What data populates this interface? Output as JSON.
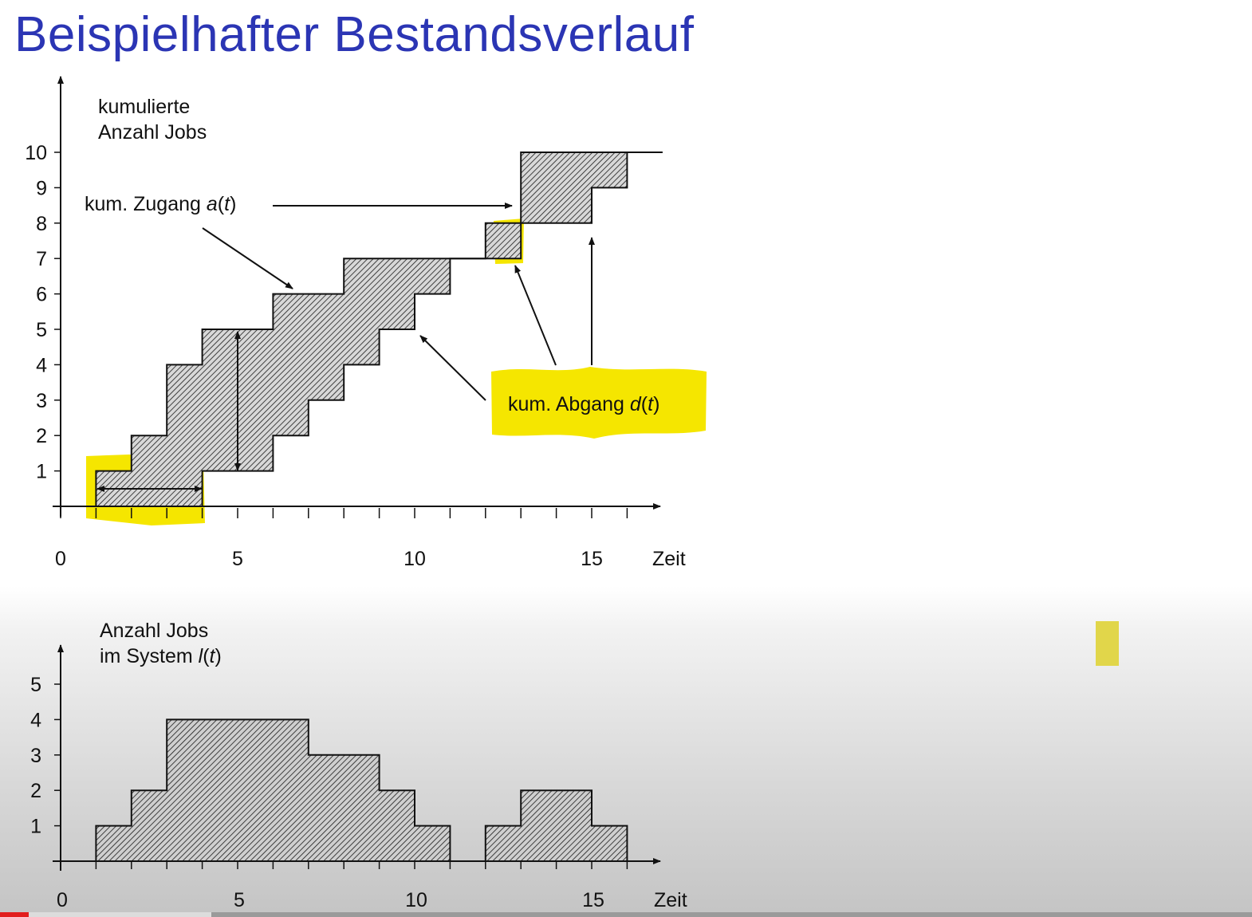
{
  "slide": {
    "title": "Beispielhafter Bestandsverlauf"
  },
  "colors": {
    "title": "#2b35b4",
    "highlight": "#f5e600",
    "ink": "#111111",
    "hatch_bg": "#d8d8d8"
  },
  "chart_data": [
    {
      "type": "line",
      "step": true,
      "ylabel": [
        "kumulierte",
        "Anzahl Jobs"
      ],
      "xlabel": "Zeit",
      "xlim": [
        0,
        17
      ],
      "ylim": [
        0,
        10
      ],
      "xticks": [
        0,
        5,
        10,
        15
      ],
      "yticks": [
        1,
        2,
        3,
        4,
        5,
        6,
        7,
        8,
        9,
        10
      ],
      "series": [
        {
          "name": "kum. Zugang a(t)",
          "x": [
            0,
            1,
            2,
            3,
            4,
            6,
            8,
            12,
            13,
            17
          ],
          "y": [
            0,
            1,
            2,
            4,
            5,
            6,
            7,
            8,
            10,
            10
          ]
        },
        {
          "name": "kum. Abgang d(t)",
          "x": [
            0,
            4,
            5,
            6,
            7,
            8,
            9,
            10,
            11,
            13,
            15,
            16,
            17
          ],
          "y": [
            0,
            1,
            1,
            2,
            3,
            4,
            5,
            6,
            7,
            8,
            9,
            10,
            10
          ]
        }
      ],
      "annotations": [
        {
          "text": "kum. Zugang",
          "var": "a",
          "arg": "t"
        },
        {
          "text": "kum. Abgang",
          "var": "d",
          "arg": "t",
          "highlighted": true
        }
      ],
      "fill_between": "hatched"
    },
    {
      "type": "area",
      "step": true,
      "ylabel": [
        "Anzahl Jobs",
        "im System"
      ],
      "ylabel_var": "l",
      "ylabel_arg": "t",
      "xlabel": "Zeit",
      "xlim": [
        0,
        17
      ],
      "ylim": [
        0,
        5
      ],
      "xticks": [
        0,
        5,
        10,
        15
      ],
      "yticks": [
        1,
        2,
        3,
        4,
        5
      ],
      "series": [
        {
          "name": "l(t)",
          "x": [
            0,
            1,
            2,
            3,
            7,
            9,
            10,
            11,
            12,
            13,
            15,
            16,
            17
          ],
          "y": [
            0,
            1,
            2,
            4,
            3,
            2,
            1,
            0,
            1,
            2,
            1,
            0,
            0
          ]
        }
      ]
    }
  ]
}
